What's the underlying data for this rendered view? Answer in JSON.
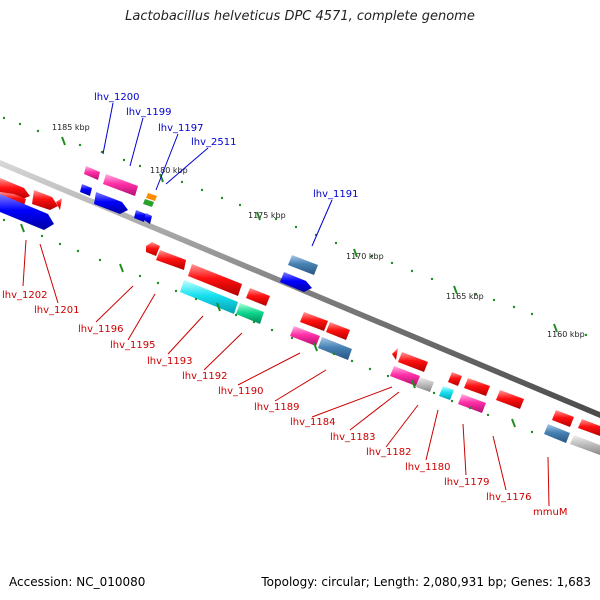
{
  "title": "Lactobacillus helveticus DPC 4571, complete genome",
  "footer": {
    "accession": "Accession: NC_010080",
    "topology": "Topology: circular; Length: 2,080,931 bp; Genes: 1,683"
  },
  "ticks": [
    "1185 kbp",
    "1180 kbp",
    "1175 kbp",
    "1170 kbp",
    "1165 kbp",
    "1160 kbp"
  ],
  "top_labels": [
    "lhv_1200",
    "lhv_1199",
    "lhv_1197",
    "lhv_2511",
    "lhv_1191"
  ],
  "bottom_labels": [
    "lhv_1202",
    "lhv_1201",
    "lhv_1196",
    "lhv_1195",
    "lhv_1193",
    "lhv_1192",
    "lhv_1190",
    "lhv_1189",
    "lhv_1184",
    "lhv_1183",
    "lhv_1182",
    "lhv_1180",
    "lhv_1179",
    "lhv_1176",
    "mmuM"
  ],
  "colors": {
    "backbone": "#7f7f7f",
    "forward_gene": "#0000ff",
    "reverse_gene": "#ff0000",
    "top_label": "#0000cc",
    "bottom_label": "#cc0000",
    "tick": "#228b22"
  }
}
